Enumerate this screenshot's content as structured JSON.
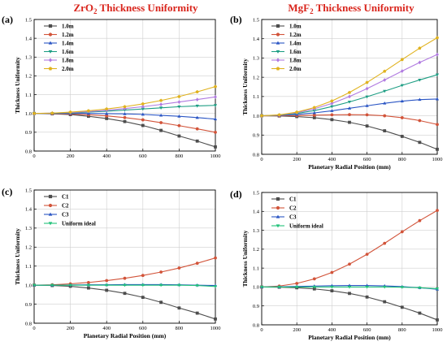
{
  "panel_labels": [
    "(a)",
    "(b)",
    "(c)",
    "(d)"
  ],
  "titles": {
    "a_prefix": "ZrO",
    "a_sub": "2",
    "a_suffix": " Thickness  Uniformity",
    "b_prefix": "MgF",
    "b_sub": "2",
    "b_suffix": " Thickness Uniformity"
  },
  "colors": {
    "dark_gray": "#4d4d4d",
    "red": "#d2543a",
    "blue": "#2a55c4",
    "teal": "#1e9e84",
    "violet": "#b07ae0",
    "gold": "#e0b21e",
    "green_ideal": "#22c27a",
    "title": "#d9251c"
  },
  "chart_data": [
    {
      "type": "line",
      "panel": "(a)",
      "title": "ZrO2 Thickness  Uniformity",
      "xlabel": "",
      "ylabel": "Thickness Uniformity",
      "xlim": [
        0,
        1000
      ],
      "ylim": [
        0.8,
        1.5
      ],
      "xticks": [
        0,
        200,
        400,
        600,
        800,
        1000
      ],
      "yticks": [
        0.8,
        0.9,
        1.0,
        1.1,
        1.2,
        1.3,
        1.4,
        1.5
      ],
      "ytick_labels": [
        "0.8",
        "0.9",
        "1.0",
        "1.1",
        "1.2",
        "1.3",
        "1.4",
        "1.5"
      ],
      "legend_position": "top-left",
      "x": [
        0,
        100,
        200,
        300,
        400,
        500,
        600,
        700,
        800,
        900,
        1000
      ],
      "series": [
        {
          "name": "1.0m",
          "color": "#4d4d4d",
          "marker": "square",
          "values": [
            1.0,
            0.998,
            0.994,
            0.985,
            0.973,
            0.957,
            0.936,
            0.91,
            0.88,
            0.853,
            0.822
          ]
        },
        {
          "name": "1.2m",
          "color": "#d2543a",
          "marker": "circle",
          "values": [
            1.0,
            0.999,
            0.997,
            0.993,
            0.987,
            0.978,
            0.966,
            0.951,
            0.935,
            0.918,
            0.9
          ]
        },
        {
          "name": "1.4m",
          "color": "#2a55c4",
          "marker": "triangle-up",
          "values": [
            1.0,
            1.0,
            1.0,
            1.0,
            0.999,
            0.998,
            0.995,
            0.99,
            0.985,
            0.978,
            0.97
          ]
        },
        {
          "name": "1.6m",
          "color": "#1e9e84",
          "marker": "triangle-down",
          "values": [
            1.0,
            1.001,
            1.003,
            1.007,
            1.012,
            1.018,
            1.024,
            1.03,
            1.036,
            1.04,
            1.043
          ]
        },
        {
          "name": "1.8m",
          "color": "#b07ae0",
          "marker": "diamond",
          "values": [
            1.0,
            1.002,
            1.005,
            1.01,
            1.017,
            1.026,
            1.036,
            1.048,
            1.061,
            1.074,
            1.088
          ]
        },
        {
          "name": "2.0m",
          "color": "#e0b21e",
          "marker": "pentagon",
          "values": [
            1.0,
            1.002,
            1.007,
            1.014,
            1.024,
            1.036,
            1.051,
            1.069,
            1.09,
            1.115,
            1.143
          ]
        }
      ]
    },
    {
      "type": "line",
      "panel": "(b)",
      "title": "MgF2 Thickness Uniformity",
      "xlabel": "Planetary Radial Position (mm)",
      "ylabel": "Thickness Uniformity",
      "xlim": [
        0,
        1000
      ],
      "ylim": [
        0.8,
        1.5
      ],
      "xticks": [
        0,
        200,
        400,
        600,
        800,
        1000
      ],
      "yticks": [
        0.8,
        0.9,
        1.0,
        1.1,
        1.2,
        1.3,
        1.4,
        1.5
      ],
      "ytick_labels": [
        "0.8",
        "0.9",
        "1.0",
        "1.1",
        "1.2",
        "1.3",
        "1.4",
        "1.5"
      ],
      "legend_position": "top-left",
      "x": [
        0,
        100,
        200,
        300,
        400,
        500,
        600,
        700,
        800,
        900,
        1000
      ],
      "series": [
        {
          "name": "1.0m",
          "color": "#4d4d4d",
          "marker": "square",
          "values": [
            1.0,
            0.999,
            0.996,
            0.99,
            0.98,
            0.966,
            0.947,
            0.922,
            0.893,
            0.862,
            0.826
          ]
        },
        {
          "name": "1.2m",
          "color": "#d2543a",
          "marker": "circle",
          "values": [
            1.0,
            1.0,
            1.001,
            1.003,
            1.005,
            1.006,
            1.005,
            1.0,
            0.99,
            0.975,
            0.955
          ]
        },
        {
          "name": "1.4m",
          "color": "#2a55c4",
          "marker": "triangle-up",
          "values": [
            1.0,
            1.002,
            1.007,
            1.015,
            1.026,
            1.039,
            1.052,
            1.065,
            1.076,
            1.084,
            1.087
          ]
        },
        {
          "name": "1.6m",
          "color": "#1e9e84",
          "marker": "triangle-down",
          "values": [
            1.0,
            1.003,
            1.012,
            1.027,
            1.048,
            1.072,
            1.099,
            1.128,
            1.158,
            1.186,
            1.213
          ]
        },
        {
          "name": "1.8m",
          "color": "#b07ae0",
          "marker": "diamond",
          "values": [
            1.0,
            1.004,
            1.016,
            1.036,
            1.064,
            1.1,
            1.141,
            1.186,
            1.232,
            1.277,
            1.318
          ]
        },
        {
          "name": "2.0m",
          "color": "#e0b21e",
          "marker": "pentagon",
          "values": [
            1.0,
            1.005,
            1.019,
            1.043,
            1.077,
            1.121,
            1.173,
            1.231,
            1.292,
            1.351,
            1.405
          ]
        }
      ]
    },
    {
      "type": "line",
      "panel": "(c)",
      "title": "",
      "xlabel": "Planetary Radial Position (mm)",
      "ylabel": "Thickness Uniformity",
      "xlim": [
        0,
        1000
      ],
      "ylim": [
        0.8,
        1.5
      ],
      "xticks": [
        0,
        200,
        400,
        600,
        800,
        1000
      ],
      "yticks": [
        0.8,
        0.9,
        1.0,
        1.1,
        1.2,
        1.3,
        1.4,
        1.5
      ],
      "ytick_labels": [
        "0.8",
        "0.9",
        "1.0",
        "1.1",
        "1.2",
        "1.3",
        "1.4",
        "1.5"
      ],
      "legend_position": "top-left",
      "x": [
        0,
        100,
        200,
        300,
        400,
        500,
        600,
        700,
        800,
        900,
        1000
      ],
      "series": [
        {
          "name": "C1",
          "color": "#4d4d4d",
          "marker": "square",
          "values": [
            1.0,
            0.998,
            0.994,
            0.985,
            0.973,
            0.957,
            0.936,
            0.91,
            0.88,
            0.853,
            0.822
          ]
        },
        {
          "name": "C2",
          "color": "#d2543a",
          "marker": "circle",
          "values": [
            1.0,
            1.002,
            1.007,
            1.014,
            1.024,
            1.036,
            1.051,
            1.069,
            1.09,
            1.115,
            1.143
          ]
        },
        {
          "name": "C3",
          "color": "#2a55c4",
          "marker": "triangle-up",
          "values": [
            1.0,
            1.0,
            1.001,
            1.002,
            1.002,
            1.003,
            1.003,
            1.003,
            1.002,
            1.0,
            0.998
          ]
        },
        {
          "name": "Uniform ideal",
          "color": "#22c27a",
          "marker": "triangle-down",
          "values": [
            1.0,
            1.0,
            1.0,
            1.0,
            1.0,
            1.0,
            1.0,
            1.0,
            1.0,
            0.998,
            0.993
          ]
        }
      ]
    },
    {
      "type": "line",
      "panel": "(d)",
      "title": "",
      "xlabel": "Planetary Radial Position (mm)",
      "ylabel": "Thickness Uniformity",
      "xlim": [
        0,
        1000
      ],
      "ylim": [
        0.8,
        1.5
      ],
      "xticks": [
        0,
        200,
        400,
        600,
        800,
        1000
      ],
      "yticks": [
        0.8,
        0.9,
        1.0,
        1.1,
        1.2,
        1.3,
        1.4,
        1.5
      ],
      "ytick_labels": [
        "0.8",
        "0.9",
        "1.0",
        "1.1",
        "1.2",
        "1.3",
        "1.4",
        "1.5"
      ],
      "legend_position": "top-left",
      "x": [
        0,
        100,
        200,
        300,
        400,
        500,
        600,
        700,
        800,
        900,
        1000
      ],
      "series": [
        {
          "name": "C1",
          "color": "#4d4d4d",
          "marker": "square",
          "values": [
            1.0,
            0.999,
            0.996,
            0.99,
            0.98,
            0.966,
            0.947,
            0.922,
            0.893,
            0.862,
            0.826
          ]
        },
        {
          "name": "C2",
          "color": "#d2543a",
          "marker": "circle",
          "values": [
            1.0,
            1.005,
            1.019,
            1.043,
            1.077,
            1.121,
            1.173,
            1.231,
            1.292,
            1.351,
            1.405
          ]
        },
        {
          "name": "C3",
          "color": "#2a55c4",
          "marker": "triangle-up",
          "values": [
            1.0,
            1.001,
            1.003,
            1.005,
            1.007,
            1.008,
            1.008,
            1.006,
            1.002,
            0.996,
            0.988
          ]
        },
        {
          "name": "Uniform ideal",
          "color": "#22c27a",
          "marker": "triangle-down",
          "values": [
            1.0,
            1.0,
            1.0,
            1.0,
            1.0,
            1.0,
            1.0,
            1.0,
            0.999,
            0.996,
            0.991
          ]
        }
      ]
    }
  ]
}
